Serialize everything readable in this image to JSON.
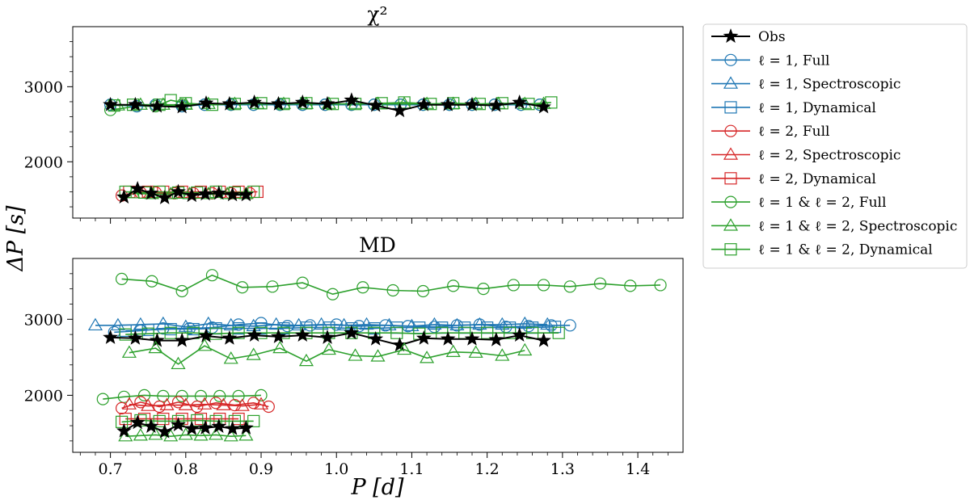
{
  "figure": {
    "ylabel": "ΔP [s]",
    "xlabel": "P [d]",
    "xticks": [
      0.7,
      0.8,
      0.9,
      1.0,
      1.1,
      1.2,
      1.3,
      1.4
    ],
    "xtick_labels": [
      "0.7",
      "0.8",
      "0.9",
      "1.0",
      "1.1",
      "1.2",
      "1.3",
      "1.4"
    ],
    "xlim": [
      0.65,
      1.46
    ]
  },
  "colors": {
    "obs": "#000000",
    "l1": "#1f77b4",
    "l2": "#d62728",
    "both": "#2ca02c"
  },
  "legend": [
    {
      "label": "Obs",
      "color": "#000000",
      "marker": "star"
    },
    {
      "label": "ℓ = 1,  Full",
      "color": "#1f77b4",
      "marker": "circle"
    },
    {
      "label": "ℓ = 1,  Spectroscopic",
      "color": "#1f77b4",
      "marker": "triangle"
    },
    {
      "label": "ℓ = 1,  Dynamical",
      "color": "#1f77b4",
      "marker": "square"
    },
    {
      "label": "ℓ = 2,  Full",
      "color": "#d62728",
      "marker": "circle"
    },
    {
      "label": "ℓ = 2,  Spectroscopic",
      "color": "#d62728",
      "marker": "triangle"
    },
    {
      "label": "ℓ = 2,  Dynamical",
      "color": "#d62728",
      "marker": "square"
    },
    {
      "label": "ℓ = 1 & ℓ = 2,  Full",
      "color": "#2ca02c",
      "marker": "circle"
    },
    {
      "label": "ℓ = 1 & ℓ = 2,  Spectroscopic",
      "color": "#2ca02c",
      "marker": "triangle"
    },
    {
      "label": "ℓ = 1 & ℓ = 2,  Dynamical",
      "color": "#2ca02c",
      "marker": "square"
    }
  ],
  "chart_data": [
    {
      "type": "line",
      "title": "χ²",
      "ylim": [
        1250,
        3800
      ],
      "yticks": [
        2000,
        3000
      ],
      "ytick_labels": [
        "2000",
        "3000"
      ],
      "x_shared": true,
      "series": [
        {
          "name": "ℓ = 1 & ℓ = 2,  Full",
          "color": "#2ca02c",
          "marker": "circle",
          "x": [
            0.7,
            0.735,
            0.76,
            0.795,
            0.825,
            0.86,
            0.89,
            0.925,
            0.955,
            0.985,
            1.02,
            1.05,
            1.085,
            1.115,
            1.15,
            1.18,
            1.21,
            1.245,
            1.27
          ],
          "y": [
            2690,
            2740,
            2740,
            2760,
            2760,
            2760,
            2760,
            2760,
            2760,
            2760,
            2760,
            2760,
            2760,
            2760,
            2760,
            2760,
            2760,
            2760,
            2760
          ]
        },
        {
          "name": "ℓ = 1,  Full",
          "color": "#1f77b4",
          "marker": "circle",
          "x": [
            0.7,
            0.735,
            0.76,
            0.795,
            0.825,
            0.86,
            0.89,
            0.925,
            0.955,
            0.985,
            1.02,
            1.05,
            1.085,
            1.115,
            1.15,
            1.18,
            1.21,
            1.245,
            1.27
          ],
          "y": [
            2760,
            2740,
            2760,
            2740,
            2760,
            2760,
            2760,
            2760,
            2760,
            2760,
            2760,
            2760,
            2760,
            2760,
            2760,
            2760,
            2760,
            2760,
            2760
          ]
        },
        {
          "name": "ℓ = 1 & ℓ = 2,  Spectroscopic",
          "color": "#2ca02c",
          "marker": "triangle",
          "x": [
            0.71,
            0.74,
            0.77,
            0.8,
            0.83,
            0.865,
            0.895,
            0.93,
            0.96,
            0.99,
            1.025,
            1.055,
            1.09,
            1.12,
            1.155,
            1.185,
            1.215,
            1.25,
            1.275
          ],
          "y": [
            2750,
            2760,
            2760,
            2760,
            2770,
            2770,
            2770,
            2770,
            2770,
            2770,
            2770,
            2770,
            2770,
            2770,
            2770,
            2770,
            2770,
            2770,
            2770
          ]
        },
        {
          "name": "ℓ = 1 & ℓ = 2,  Dynamical",
          "color": "#2ca02c",
          "marker": "square",
          "x": [
            0.705,
            0.73,
            0.765,
            0.78,
            0.8,
            0.835,
            0.865,
            0.9,
            0.93,
            0.96,
            0.995,
            1.025,
            1.06,
            1.09,
            1.125,
            1.155,
            1.19,
            1.22,
            1.255,
            1.285
          ],
          "y": [
            2750,
            2760,
            2760,
            2820,
            2780,
            2760,
            2770,
            2780,
            2770,
            2780,
            2770,
            2770,
            2780,
            2790,
            2770,
            2780,
            2770,
            2780,
            2770,
            2790
          ]
        },
        {
          "name": "Obs",
          "color": "#000000",
          "marker": "star",
          "x": [
            0.7,
            0.733,
            0.762,
            0.795,
            0.827,
            0.858,
            0.891,
            0.923,
            0.955,
            0.988,
            1.02,
            1.052,
            1.084,
            1.116,
            1.148,
            1.18,
            1.212,
            1.243,
            1.275
          ],
          "y": [
            2760,
            2760,
            2740,
            2730,
            2780,
            2770,
            2790,
            2770,
            2790,
            2770,
            2820,
            2750,
            2680,
            2760,
            2760,
            2760,
            2750,
            2790,
            2730
          ]
        },
        {
          "name": "ℓ = 2,  Full",
          "color": "#d62728",
          "marker": "circle",
          "x": [
            0.715,
            0.74,
            0.76,
            0.785,
            0.81,
            0.835,
            0.86,
            0.885
          ],
          "y": [
            1550,
            1590,
            1590,
            1580,
            1580,
            1580,
            1580,
            1580
          ]
        },
        {
          "name": "ℓ = 2,  Dynamical",
          "color": "#d62728",
          "marker": "square",
          "x": [
            0.725,
            0.75,
            0.77,
            0.795,
            0.82,
            0.845,
            0.87,
            0.895
          ],
          "y": [
            1600,
            1600,
            1600,
            1600,
            1600,
            1600,
            1600,
            1600
          ]
        },
        {
          "name": "ℓ = 1 & ℓ = 2,  Dynamical",
          "color": "#2ca02c",
          "marker": "square",
          "x": [
            0.72,
            0.745,
            0.765,
            0.79,
            0.815,
            0.84,
            0.865,
            0.89
          ],
          "y": [
            1600,
            1590,
            1600,
            1590,
            1590,
            1600,
            1590,
            1600
          ]
        },
        {
          "name": "ℓ = 1 & ℓ = 2,  Spectroscopic",
          "color": "#2ca02c",
          "marker": "triangle",
          "x": [
            0.73,
            0.755,
            0.78,
            0.805,
            0.83,
            0.855,
            0.88
          ],
          "y": [
            1580,
            1570,
            1570,
            1570,
            1570,
            1570,
            1570
          ]
        },
        {
          "name": "Obs",
          "color": "#000000",
          "marker": "star",
          "x": [
            0.718,
            0.736,
            0.754,
            0.772,
            0.79,
            0.808,
            0.826,
            0.844,
            0.862,
            0.88
          ],
          "y": [
            1530,
            1640,
            1580,
            1520,
            1600,
            1550,
            1570,
            1580,
            1560,
            1560
          ]
        }
      ]
    },
    {
      "type": "line",
      "title": "MD",
      "ylim": [
        1250,
        3800
      ],
      "yticks": [
        2000,
        3000
      ],
      "ytick_labels": [
        "2000",
        "3000"
      ],
      "xlabel": "P [d]",
      "series": [
        {
          "name": "ℓ = 1 & ℓ = 2,  Full",
          "color": "#2ca02c",
          "marker": "circle",
          "x": [
            0.715,
            0.755,
            0.795,
            0.835,
            0.875,
            0.915,
            0.955,
            0.995,
            1.035,
            1.075,
            1.115,
            1.155,
            1.195,
            1.235,
            1.275,
            1.31,
            1.35,
            1.39,
            1.43
          ],
          "y": [
            3530,
            3500,
            3370,
            3580,
            3420,
            3430,
            3480,
            3330,
            3420,
            3380,
            3370,
            3440,
            3400,
            3450,
            3450,
            3430,
            3470,
            3440,
            3450
          ]
        },
        {
          "name": "ℓ = 1,  Spectroscopic",
          "color": "#1f77b4",
          "marker": "triangle",
          "x": [
            0.68,
            0.71,
            0.74,
            0.77,
            0.8,
            0.83,
            0.86,
            0.89,
            0.92,
            0.95,
            0.98,
            1.01,
            1.04,
            1.07,
            1.1,
            1.13,
            1.16,
            1.19,
            1.22,
            1.25,
            1.28
          ],
          "y": [
            2920,
            2920,
            2930,
            2940,
            2900,
            2940,
            2920,
            2910,
            2930,
            2920,
            2930,
            2920,
            2930,
            2920,
            2910,
            2930,
            2920,
            2930,
            2930,
            2940,
            2930
          ]
        },
        {
          "name": "ℓ = 1,  Full",
          "color": "#1f77b4",
          "marker": "circle",
          "x": [
            0.705,
            0.74,
            0.77,
            0.805,
            0.835,
            0.87,
            0.9,
            0.935,
            0.965,
            1.0,
            1.03,
            1.065,
            1.095,
            1.13,
            1.16,
            1.19,
            1.225,
            1.255,
            1.285,
            1.31
          ],
          "y": [
            2830,
            2850,
            2880,
            2880,
            2890,
            2930,
            2950,
            2910,
            2920,
            2930,
            2910,
            2920,
            2910,
            2900,
            2920,
            2930,
            2900,
            2910,
            2920,
            2920
          ]
        },
        {
          "name": "ℓ = 1,  Dynamical",
          "color": "#1f77b4",
          "marker": "square",
          "x": [
            0.72,
            0.75,
            0.78,
            0.81,
            0.84,
            0.87,
            0.9,
            0.93,
            0.96,
            0.99,
            1.02,
            1.05,
            1.08,
            1.11,
            1.14,
            1.17,
            1.2,
            1.23,
            1.26,
            1.29
          ],
          "y": [
            2850,
            2860,
            2870,
            2870,
            2880,
            2880,
            2880,
            2880,
            2890,
            2890,
            2880,
            2880,
            2890,
            2890,
            2890,
            2890,
            2890,
            2890,
            2890,
            2900
          ]
        },
        {
          "name": "ℓ = 1 & ℓ = 2,  Dynamical",
          "color": "#2ca02c",
          "marker": "square",
          "x": [
            0.72,
            0.75,
            0.78,
            0.81,
            0.84,
            0.87,
            0.9,
            0.93,
            0.96,
            0.99,
            1.02,
            1.05,
            1.08,
            1.11,
            1.14,
            1.17,
            1.2,
            1.23,
            1.26,
            1.295
          ],
          "y": [
            2800,
            2810,
            2820,
            2820,
            2810,
            2820,
            2820,
            2820,
            2820,
            2820,
            2820,
            2820,
            2820,
            2810,
            2820,
            2820,
            2820,
            2820,
            2820,
            2820
          ]
        },
        {
          "name": "Obs",
          "color": "#000000",
          "marker": "star",
          "x": [
            0.7,
            0.733,
            0.762,
            0.795,
            0.827,
            0.858,
            0.891,
            0.923,
            0.955,
            0.988,
            1.02,
            1.052,
            1.084,
            1.116,
            1.148,
            1.18,
            1.212,
            1.243,
            1.275
          ],
          "y": [
            2760,
            2750,
            2720,
            2720,
            2780,
            2750,
            2790,
            2770,
            2790,
            2760,
            2820,
            2740,
            2660,
            2750,
            2740,
            2740,
            2730,
            2790,
            2720
          ]
        },
        {
          "name": "ℓ = 1 & ℓ = 2,  Spectroscopic",
          "color": "#2ca02c",
          "marker": "triangle",
          "x": [
            0.725,
            0.76,
            0.79,
            0.825,
            0.86,
            0.89,
            0.925,
            0.96,
            0.99,
            1.025,
            1.055,
            1.09,
            1.12,
            1.155,
            1.185,
            1.22,
            1.25
          ],
          "y": [
            2560,
            2620,
            2410,
            2650,
            2480,
            2530,
            2620,
            2450,
            2600,
            2520,
            2510,
            2600,
            2490,
            2570,
            2560,
            2520,
            2590
          ]
        },
        {
          "name": "ℓ = 1 & ℓ = 2,  Full",
          "color": "#2ca02c",
          "marker": "circle",
          "x": [
            0.69,
            0.718,
            0.745,
            0.77,
            0.795,
            0.82,
            0.845,
            0.87,
            0.9
          ],
          "y": [
            1950,
            1980,
            2000,
            1990,
            1990,
            1990,
            1990,
            1990,
            2000
          ]
        },
        {
          "name": "ℓ = 2,  Full",
          "color": "#d62728",
          "marker": "circle",
          "x": [
            0.715,
            0.74,
            0.765,
            0.79,
            0.815,
            0.84,
            0.865,
            0.89,
            0.91
          ],
          "y": [
            1830,
            1910,
            1850,
            1910,
            1850,
            1900,
            1870,
            1900,
            1850
          ]
        },
        {
          "name": "ℓ = 2,  Spectroscopic",
          "color": "#d62728",
          "marker": "triangle",
          "x": [
            0.725,
            0.75,
            0.775,
            0.8,
            0.825,
            0.85,
            0.875,
            0.9
          ],
          "y": [
            1880,
            1860,
            1870,
            1870,
            1880,
            1870,
            1860,
            1880
          ]
        },
        {
          "name": "ℓ = 2,  Dynamical",
          "color": "#d62728",
          "marker": "square",
          "x": [
            0.72,
            0.745,
            0.77,
            0.795,
            0.82,
            0.845,
            0.87
          ],
          "y": [
            1690,
            1690,
            1690,
            1690,
            1690,
            1690,
            1690
          ]
        },
        {
          "name": "ℓ = 1 & ℓ = 2,  Dynamical",
          "color": "#2ca02c",
          "marker": "square",
          "x": [
            0.715,
            0.74,
            0.765,
            0.79,
            0.815,
            0.84,
            0.865,
            0.89
          ],
          "y": [
            1650,
            1670,
            1660,
            1660,
            1670,
            1660,
            1660,
            1660
          ]
        },
        {
          "name": "ℓ = 1 & ℓ = 2,  Spectroscopic",
          "color": "#2ca02c",
          "marker": "triangle",
          "x": [
            0.72,
            0.74,
            0.76,
            0.78,
            0.8,
            0.82,
            0.84,
            0.86,
            0.88
          ],
          "y": [
            1460,
            1470,
            1480,
            1460,
            1480,
            1470,
            1480,
            1460,
            1470
          ]
        },
        {
          "name": "Obs",
          "color": "#000000",
          "marker": "star",
          "x": [
            0.718,
            0.736,
            0.754,
            0.772,
            0.79,
            0.808,
            0.826,
            0.844,
            0.862,
            0.88
          ],
          "y": [
            1530,
            1640,
            1590,
            1520,
            1610,
            1560,
            1570,
            1590,
            1560,
            1570
          ]
        }
      ]
    }
  ]
}
